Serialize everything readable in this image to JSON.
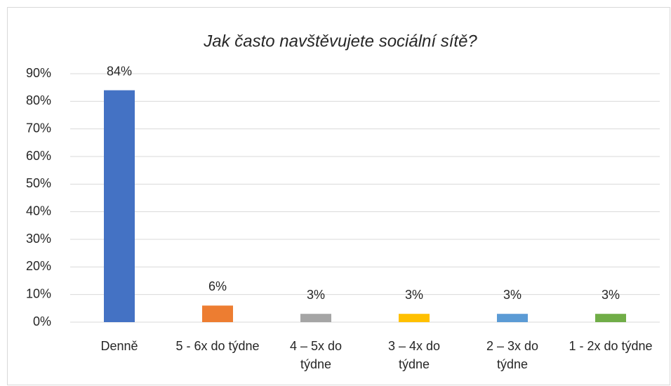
{
  "chart_data": {
    "type": "bar",
    "title": "Jak často navštěvujete sociální sítě?",
    "categories": [
      "Denně",
      "5 - 6x do týdne",
      "4 – 5x do týdne",
      "3 – 4x do týdne",
      "2 – 3x do týdne",
      "1 - 2x do týdne"
    ],
    "values": [
      84,
      6,
      3,
      3,
      3,
      3
    ],
    "value_labels": [
      "84%",
      "6%",
      "3%",
      "3%",
      "3%",
      "3%"
    ],
    "colors": [
      "#4472c4",
      "#ed7d31",
      "#a5a5a5",
      "#ffc000",
      "#5b9bd5",
      "#70ad47"
    ],
    "ylim": [
      0,
      90
    ],
    "yticks": [
      {
        "value": 0,
        "label": "0%"
      },
      {
        "value": 10,
        "label": "10%"
      },
      {
        "value": 20,
        "label": "20%"
      },
      {
        "value": 30,
        "label": "30%"
      },
      {
        "value": 40,
        "label": "40%"
      },
      {
        "value": 50,
        "label": "50%"
      },
      {
        "value": 60,
        "label": "60%"
      },
      {
        "value": 70,
        "label": "70%"
      },
      {
        "value": 80,
        "label": "80%"
      },
      {
        "value": 90,
        "label": "90%"
      }
    ],
    "grid": true
  }
}
